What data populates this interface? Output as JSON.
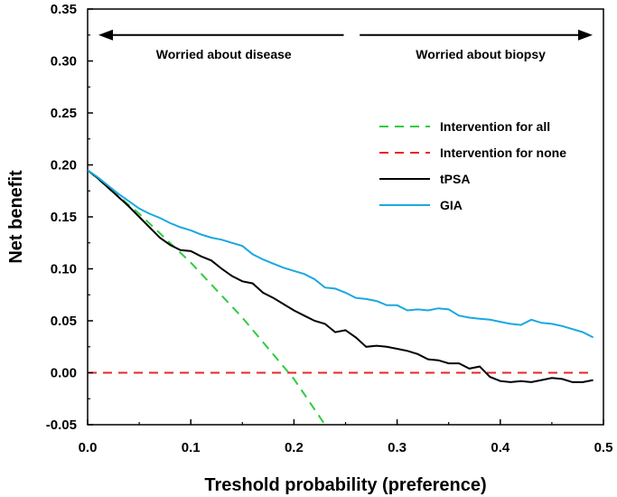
{
  "chart_data": {
    "type": "line",
    "xlabel": "Treshold probability (preference)",
    "ylabel": "Net benefit",
    "xlim": [
      0.0,
      0.5
    ],
    "ylim": [
      -0.05,
      0.35
    ],
    "xticks": [
      0.0,
      0.1,
      0.2,
      0.3,
      0.4,
      0.5
    ],
    "xtick_labels": [
      "0.0",
      "0.1",
      "0.2",
      "0.3",
      "0.4",
      "0.5"
    ],
    "yticks": [
      -0.05,
      0.0,
      0.05,
      0.1,
      0.15,
      0.2,
      0.25,
      0.3,
      0.35
    ],
    "ytick_labels": [
      "-0.05",
      "0.00",
      "0.05",
      "0.10",
      "0.15",
      "0.20",
      "0.25",
      "0.30",
      "0.35"
    ],
    "annotations": {
      "left": "Worried about disease",
      "right": "Worried about biopsy",
      "arrow_y": 0.325,
      "arrow_left_x": [
        0.0,
        0.25
      ],
      "arrow_right_x": [
        0.255,
        0.5
      ]
    },
    "legend_position": "upper-right",
    "series": [
      {
        "name": "Intervention for all",
        "color": "#2ecc40",
        "dash": "dashed",
        "x": [
          0.0,
          0.05,
          0.1,
          0.15,
          0.2,
          0.23
        ],
        "y": [
          0.195,
          0.153,
          0.106,
          0.053,
          -0.006,
          -0.05
        ]
      },
      {
        "name": "Intervention for none",
        "color": "#e8252a",
        "dash": "dashed",
        "x": [
          0.0,
          0.49
        ],
        "y": [
          0.0,
          0.0
        ]
      },
      {
        "name": "tPSA",
        "color": "#000000",
        "dash": "solid",
        "x": [
          0.0,
          0.01,
          0.02,
          0.03,
          0.04,
          0.05,
          0.06,
          0.07,
          0.08,
          0.09,
          0.1,
          0.11,
          0.12,
          0.13,
          0.14,
          0.15,
          0.16,
          0.17,
          0.18,
          0.19,
          0.2,
          0.21,
          0.22,
          0.23,
          0.24,
          0.25,
          0.26,
          0.27,
          0.28,
          0.29,
          0.3,
          0.31,
          0.32,
          0.33,
          0.34,
          0.35,
          0.36,
          0.37,
          0.38,
          0.39,
          0.4,
          0.41,
          0.42,
          0.43,
          0.44,
          0.45,
          0.46,
          0.47,
          0.48,
          0.49
        ],
        "y": [
          0.195,
          0.187,
          0.178,
          0.169,
          0.16,
          0.15,
          0.14,
          0.13,
          0.123,
          0.118,
          0.117,
          0.112,
          0.108,
          0.1,
          0.093,
          0.088,
          0.086,
          0.077,
          0.072,
          0.066,
          0.06,
          0.055,
          0.05,
          0.047,
          0.039,
          0.041,
          0.034,
          0.025,
          0.026,
          0.025,
          0.023,
          0.021,
          0.018,
          0.013,
          0.012,
          0.009,
          0.009,
          0.004,
          0.006,
          -0.004,
          -0.008,
          -0.009,
          -0.008,
          -0.009,
          -0.007,
          -0.005,
          -0.006,
          -0.009,
          -0.009,
          -0.007
        ]
      },
      {
        "name": "GIA",
        "color": "#1aa8e0",
        "dash": "solid",
        "x": [
          0.0,
          0.01,
          0.02,
          0.03,
          0.04,
          0.05,
          0.06,
          0.07,
          0.08,
          0.09,
          0.1,
          0.11,
          0.12,
          0.13,
          0.14,
          0.15,
          0.16,
          0.17,
          0.18,
          0.19,
          0.2,
          0.21,
          0.22,
          0.23,
          0.24,
          0.25,
          0.26,
          0.27,
          0.28,
          0.29,
          0.3,
          0.31,
          0.32,
          0.33,
          0.34,
          0.35,
          0.36,
          0.37,
          0.38,
          0.39,
          0.4,
          0.41,
          0.42,
          0.43,
          0.44,
          0.45,
          0.46,
          0.47,
          0.48,
          0.49
        ],
        "y": [
          0.195,
          0.188,
          0.18,
          0.172,
          0.165,
          0.158,
          0.153,
          0.149,
          0.144,
          0.14,
          0.137,
          0.133,
          0.13,
          0.128,
          0.125,
          0.122,
          0.114,
          0.109,
          0.105,
          0.101,
          0.098,
          0.095,
          0.09,
          0.082,
          0.081,
          0.077,
          0.072,
          0.071,
          0.069,
          0.065,
          0.065,
          0.06,
          0.061,
          0.06,
          0.062,
          0.061,
          0.055,
          0.053,
          0.052,
          0.051,
          0.049,
          0.047,
          0.046,
          0.051,
          0.048,
          0.047,
          0.045,
          0.042,
          0.039,
          0.034
        ]
      }
    ]
  }
}
